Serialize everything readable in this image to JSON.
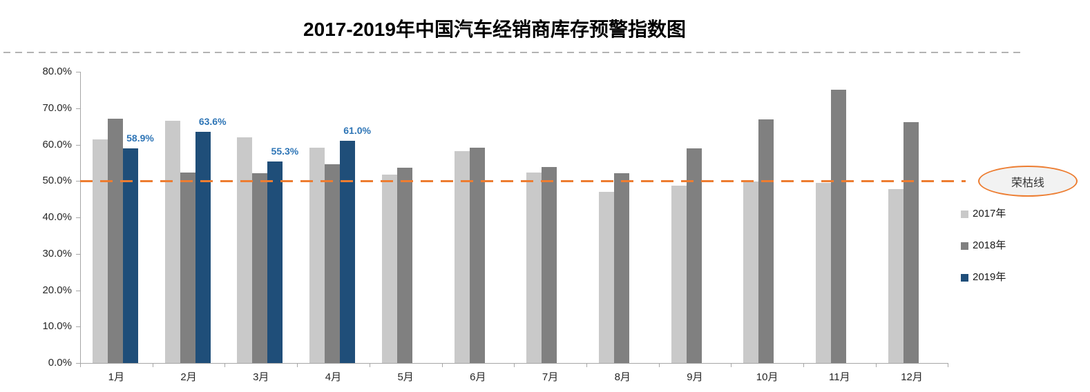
{
  "chart_data": {
    "type": "bar",
    "title": "2017-2019年中国汽车经销商库存预警指数图",
    "categories": [
      "1月",
      "2月",
      "3月",
      "4月",
      "5月",
      "6月",
      "7月",
      "8月",
      "9月",
      "10月",
      "11月",
      "12月"
    ],
    "series": [
      {
        "name": "2017年",
        "color": "#c9c9c9",
        "values": [
          61.5,
          66.6,
          61.9,
          59.2,
          51.8,
          58.2,
          52.4,
          47.0,
          48.7,
          49.9,
          49.5,
          47.7
        ]
      },
      {
        "name": "2018年",
        "color": "#808080",
        "values": [
          67.2,
          52.3,
          52.1,
          54.6,
          53.7,
          59.2,
          53.9,
          52.2,
          58.9,
          66.9,
          75.1,
          66.1
        ]
      },
      {
        "name": "2019年",
        "color": "#1f4e79",
        "values": [
          58.9,
          63.6,
          55.3,
          61.0,
          null,
          null,
          null,
          null,
          null,
          null,
          null,
          null
        ],
        "labels": [
          "58.9%",
          "63.6%",
          "55.3%",
          "61.0%"
        ]
      }
    ],
    "y_ticks": [
      "0.0%",
      "10.0%",
      "20.0%",
      "30.0%",
      "40.0%",
      "50.0%",
      "60.0%",
      "70.0%",
      "80.0%"
    ],
    "ylim": [
      0,
      80
    ],
    "xlabel": "",
    "ylabel": "",
    "grid": false,
    "legend_position": "right",
    "data_label_color": "#2e75b6",
    "threshold": {
      "value": 50,
      "label": "荣枯线",
      "color": "#ed7d31"
    }
  }
}
